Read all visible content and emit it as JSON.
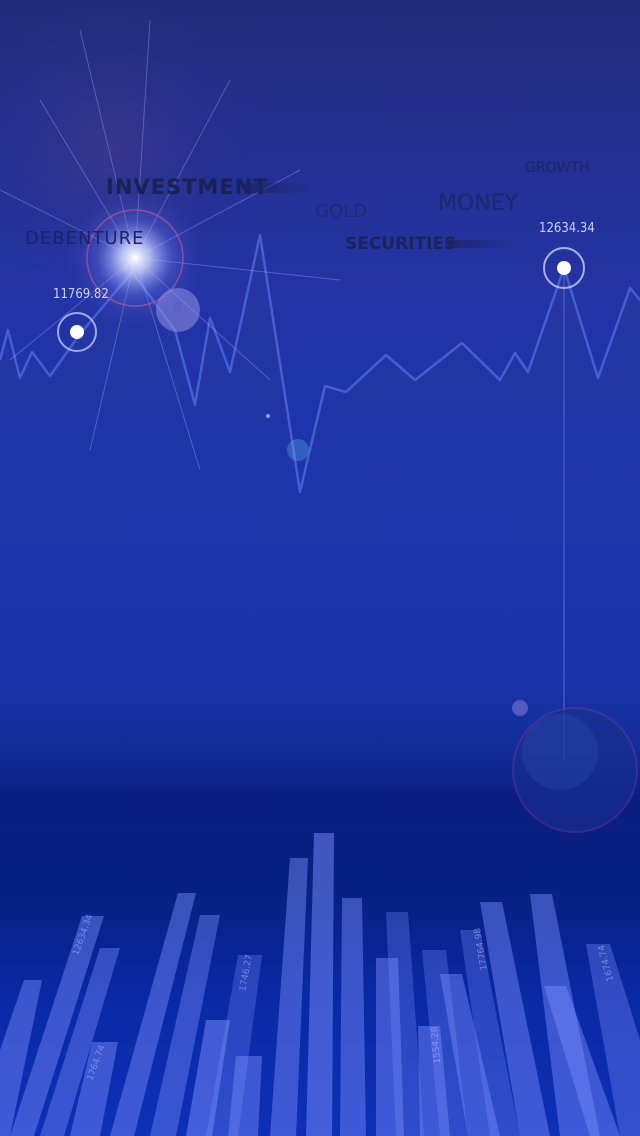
{
  "words": {
    "investment": "INVESTMENT",
    "debenture": "DEBENTURE",
    "gold": "GOLD",
    "money": "MONEY",
    "securities": "SECURITIES",
    "growth": "GROWTH"
  },
  "values": {
    "left": "11769.82",
    "right": "12634.34"
  },
  "bar_labels": [
    "12634.34",
    "1764.74",
    "1746.27",
    "1554.28",
    "17764.98",
    "1674.74"
  ],
  "colors": {
    "accent": "#9aa8ff",
    "glow": "#ffffff",
    "bar": "#6f85ff"
  }
}
